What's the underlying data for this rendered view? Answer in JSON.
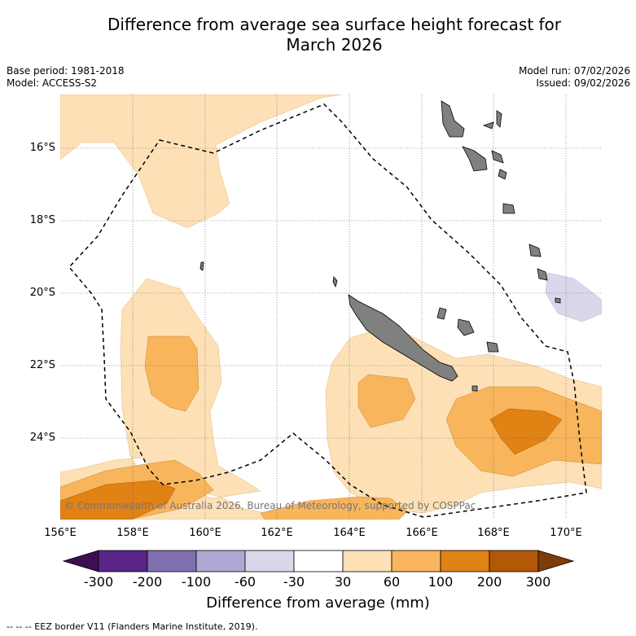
{
  "title_line1": "Difference from average sea surface height forecast for",
  "title_line2": "March 2026",
  "base_period": "Base period: 1981-2018",
  "model": "Model: ACCESS-S2",
  "model_run": "Model run: 07/02/2026",
  "issued": "Issued: 09/02/2026",
  "copyright": "© Commonwealth of Australia 2026, Bureau of Meteorology, supported by COSPPac",
  "lat_labels": [
    "16°S",
    "18°S",
    "20°S",
    "22°S",
    "24°S"
  ],
  "lon_labels": [
    "156°E",
    "158°E",
    "160°E",
    "162°E",
    "164°E",
    "166°E",
    "168°E",
    "170°E"
  ],
  "colorbar": {
    "title": "Difference from average (mm)",
    "tick_labels": [
      "-300",
      "-200",
      "-100",
      "-60",
      "-30",
      "30",
      "60",
      "100",
      "200",
      "300"
    ],
    "colors": [
      "#3b0f50",
      "#5a2587",
      "#8070b0",
      "#b0a8d2",
      "#d8d8ea",
      "#ffffff",
      "#fde0b6",
      "#f8b55c",
      "#e08214",
      "#b35806",
      "#7f3b08"
    ]
  },
  "footer": "-- -- -- EEZ border V11 (Flanders Marine Institute, 2019).",
  "colors": {
    "land": "#808080",
    "light_orange": "#fde0b6",
    "orange": "#f8b55c",
    "dark_orange": "#e08214",
    "light_purple": "#d8d8ea"
  }
}
